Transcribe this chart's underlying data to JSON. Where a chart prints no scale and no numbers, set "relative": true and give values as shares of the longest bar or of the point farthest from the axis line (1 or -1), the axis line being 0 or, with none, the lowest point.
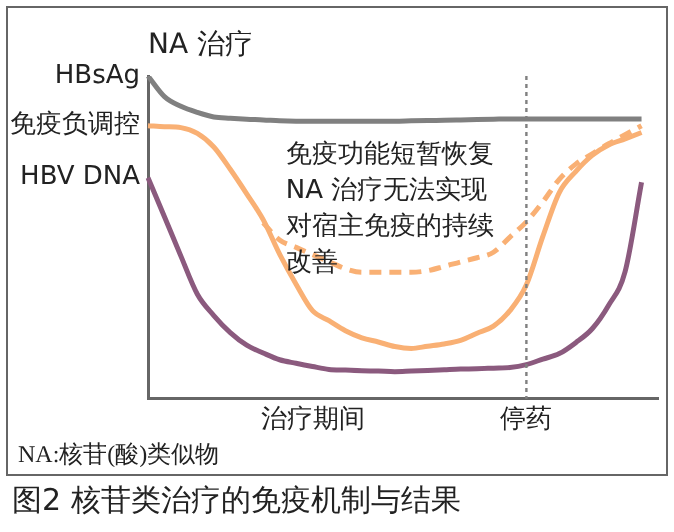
{
  "chart_data": {
    "type": "line",
    "title": "图2 核苷类治疗的免疫机制与结果",
    "ylabel": "NA 治疗",
    "relative": true,
    "legend": false,
    "grid": false,
    "marker": "none",
    "categories": [
      null,
      null,
      null,
      null,
      null,
      null,
      null,
      null,
      null,
      null,
      "治疗期间",
      null,
      null,
      null,
      null,
      null,
      null,
      null,
      null,
      null,
      null,
      null,
      null,
      "停药",
      null,
      null,
      null,
      null,
      null,
      null,
      null,
      null
    ],
    "ref_lines": [
      {
        "axis": "x",
        "value": "停药",
        "color": "#808080",
        "line_style": "dotted"
      }
    ],
    "annotations": [
      "免疫功能短暂恢复NA 治疗无法实现对宿主免疫的持续改善",
      "NA:核苷(酸)类似物"
    ],
    "series": [
      {
        "name": "HBsAg",
        "color": "#808080",
        "values": [
          1.0,
          0.936,
          0.906,
          0.887,
          0.873,
          0.869,
          0.866,
          0.864,
          0.861,
          0.86,
          0.86,
          0.86,
          0.86,
          0.86,
          0.86,
          0.86,
          0.861,
          0.862,
          0.863,
          0.864,
          0.865,
          0.866,
          0.867,
          0.867,
          0.867,
          0.867,
          0.867,
          0.867,
          0.867,
          0.867,
          0.867,
          null
        ]
      },
      {
        "name": "免疫负调控",
        "color": "#f9b074",
        "values": [
          0.846,
          0.843,
          0.84,
          0.822,
          0.78,
          0.711,
          0.635,
          0.555,
          0.448,
          0.355,
          0.273,
          0.242,
          0.211,
          0.189,
          0.176,
          0.162,
          0.156,
          0.163,
          0.17,
          0.181,
          0.203,
          0.225,
          0.273,
          0.353,
          0.503,
          0.639,
          0.704,
          0.754,
          0.786,
          0.805,
          0.825,
          null
        ]
      },
      {
        "color": "#f9b074",
        "line_style": "dashed",
        "values": [
          null,
          null,
          null,
          null,
          null,
          null,
          null,
          0.545,
          0.492,
          0.469,
          0.447,
          0.425,
          0.403,
          0.392,
          0.392,
          0.392,
          0.392,
          0.397,
          0.41,
          0.424,
          0.437,
          0.454,
          0.501,
          0.548,
          0.61,
          0.68,
          0.727,
          0.759,
          0.79,
          0.818,
          0.846,
          null
        ]
      },
      {
        "name": "HBV DNA",
        "color": "#8b5a7e",
        "values": [
          0.685,
          0.564,
          0.442,
          0.324,
          0.258,
          0.205,
          0.166,
          0.142,
          0.121,
          0.11,
          0.1,
          0.091,
          0.089,
          0.087,
          0.086,
          0.084,
          0.086,
          0.088,
          0.09,
          0.092,
          0.093,
          0.095,
          0.097,
          0.106,
          0.123,
          0.14,
          0.174,
          0.217,
          0.29,
          0.394,
          0.671,
          null
        ]
      }
    ]
  }
}
